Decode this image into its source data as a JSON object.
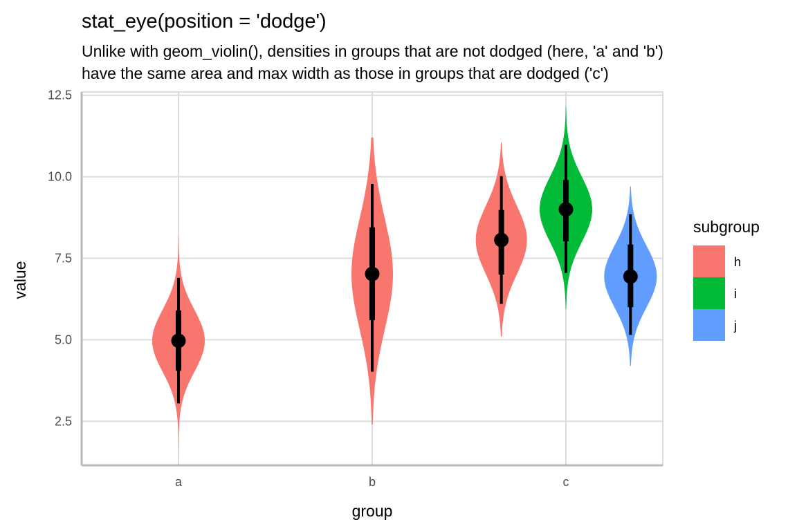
{
  "chart_data": {
    "type": "violin",
    "title": "stat_eye(position = 'dodge')",
    "subtitle": [
      "Unlike with geom_violin(), densities in groups that are not dodged (here, 'a' and 'b')",
      "have the same area and max width as those in groups that are dodged ('c')"
    ],
    "xlabel": "group",
    "ylabel": "value",
    "categories": [
      "a",
      "b",
      "c"
    ],
    "ylim": [
      1.15,
      12.6
    ],
    "yticks": [
      2.5,
      5.0,
      7.5,
      10.0,
      12.5
    ],
    "ytick_labels": [
      "2.5",
      "5.0",
      "7.5",
      "10.0",
      "12.5"
    ],
    "grid": true,
    "legend": {
      "title": "subgroup",
      "position": "right",
      "entries": [
        {
          "label": "h",
          "color": "#F8766D"
        },
        {
          "label": "i",
          "color": "#00BA38"
        },
        {
          "label": "j",
          "color": "#619CFF"
        }
      ]
    },
    "series": [
      {
        "group": "a",
        "subgroup": "h",
        "dodge_slot": 0,
        "dodge_n": 1,
        "min": 1.6,
        "max": 8.2,
        "median": 4.97,
        "interval_66": [
          4.05,
          5.9
        ],
        "interval_95": [
          3.05,
          6.9
        ],
        "density_sd": 0.95,
        "max_halfwidth": 38
      },
      {
        "group": "b",
        "subgroup": "h",
        "dodge_slot": 0,
        "dodge_n": 1,
        "min": 2.4,
        "max": 11.2,
        "median": 7.02,
        "interval_66": [
          5.6,
          8.45
        ],
        "interval_95": [
          4.02,
          9.78
        ],
        "density_sd": 1.7,
        "max_halfwidth": 30
      },
      {
        "group": "c",
        "subgroup": "h",
        "dodge_slot": 0,
        "dodge_n": 3,
        "min": 5.1,
        "max": 11.05,
        "median": 8.06,
        "interval_66": [
          7.0,
          8.98
        ],
        "interval_95": [
          6.1,
          10.02
        ],
        "density_sd": 1.05,
        "max_halfwidth": 37
      },
      {
        "group": "c",
        "subgroup": "i",
        "dodge_slot": 1,
        "dodge_n": 3,
        "min": 5.95,
        "max": 12.15,
        "median": 9.0,
        "interval_66": [
          8.02,
          9.9
        ],
        "interval_95": [
          7.05,
          10.98
        ],
        "density_sd": 1.0,
        "max_halfwidth": 38
      },
      {
        "group": "c",
        "subgroup": "j",
        "dodge_slot": 2,
        "dodge_n": 3,
        "min": 4.2,
        "max": 9.7,
        "median": 6.94,
        "interval_66": [
          6.0,
          7.92
        ],
        "interval_95": [
          5.15,
          8.85
        ],
        "density_sd": 0.95,
        "max_halfwidth": 38
      }
    ]
  }
}
